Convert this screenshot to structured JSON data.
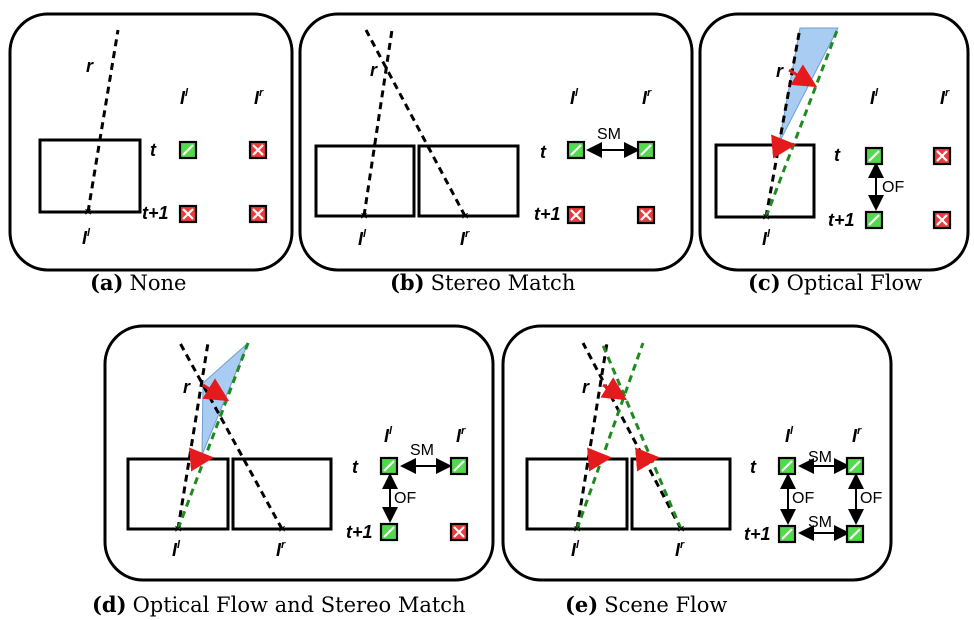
{
  "colors": {
    "check_fill": "#53d94d",
    "cross_fill": "#ef3b3b",
    "flow_fill": "#a9cdf2",
    "green_dash": "#1f8a1f",
    "red_arrow": "#e41a1c"
  },
  "labels": {
    "r": "r",
    "t": "t",
    "t1": "t+1",
    "il": "I",
    "il_sup": "l",
    "ir": "I",
    "ir_sup": "r",
    "sm": "SM",
    "of": "OF"
  },
  "panels": [
    {
      "id": "a",
      "caption_tag": "(a)",
      "caption_text": "None"
    },
    {
      "id": "b",
      "caption_tag": "(b)",
      "caption_text": "Stereo Match"
    },
    {
      "id": "c",
      "caption_tag": "(c)",
      "caption_text": "Optical Flow"
    },
    {
      "id": "d",
      "caption_tag": "(d)",
      "caption_text": "Optical Flow and Stereo Match"
    },
    {
      "id": "e",
      "caption_tag": "(e)",
      "caption_text": "Scene Flow"
    }
  ]
}
